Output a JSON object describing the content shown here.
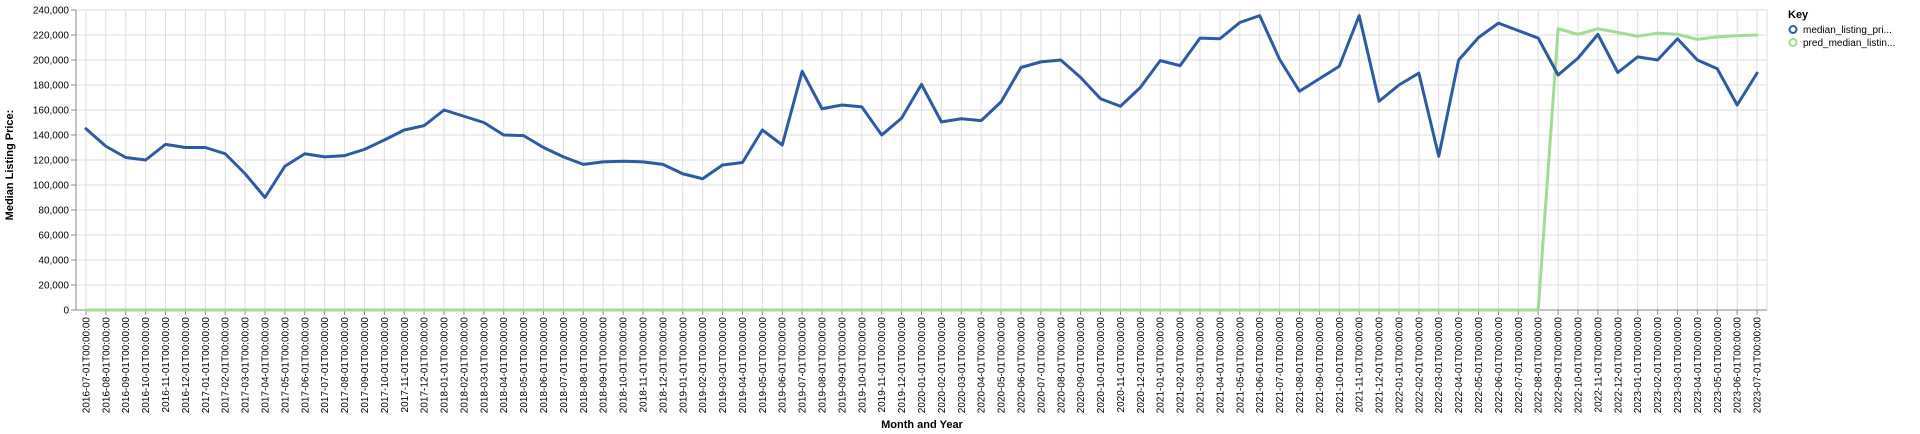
{
  "chart_data": {
    "type": "line",
    "xlabel": "Month and Year",
    "ylabel": "Median Listing Price:",
    "ylim": [
      0,
      240000
    ],
    "yticks": [
      "0",
      "20,000",
      "40,000",
      "60,000",
      "80,000",
      "100,000",
      "120,000",
      "140,000",
      "160,000",
      "180,000",
      "200,000",
      "220,000",
      "240,000"
    ],
    "grid": true,
    "legend_title": "Key",
    "legend_position": "right",
    "x": [
      "2016-07-01T00:00:00",
      "2016-08-01T00:00:00",
      "2016-09-01T00:00:00",
      "2016-10-01T00:00:00",
      "2016-11-01T00:00:00",
      "2016-12-01T00:00:00",
      "2017-01-01T00:00:00",
      "2017-02-01T00:00:00",
      "2017-03-01T00:00:00",
      "2017-04-01T00:00:00",
      "2017-05-01T00:00:00",
      "2017-06-01T00:00:00",
      "2017-07-01T00:00:00",
      "2017-08-01T00:00:00",
      "2017-09-01T00:00:00",
      "2017-10-01T00:00:00",
      "2017-11-01T00:00:00",
      "2017-12-01T00:00:00",
      "2018-01-01T00:00:00",
      "2018-02-01T00:00:00",
      "2018-03-01T00:00:00",
      "2018-04-01T00:00:00",
      "2018-05-01T00:00:00",
      "2018-06-01T00:00:00",
      "2018-07-01T00:00:00",
      "2018-08-01T00:00:00",
      "2018-09-01T00:00:00",
      "2018-10-01T00:00:00",
      "2018-11-01T00:00:00",
      "2018-12-01T00:00:00",
      "2019-01-01T00:00:00",
      "2019-02-01T00:00:00",
      "2019-03-01T00:00:00",
      "2019-04-01T00:00:00",
      "2019-05-01T00:00:00",
      "2019-06-01T00:00:00",
      "2019-07-01T00:00:00",
      "2019-08-01T00:00:00",
      "2019-09-01T00:00:00",
      "2019-10-01T00:00:00",
      "2019-11-01T00:00:00",
      "2019-12-01T00:00:00",
      "2020-01-01T00:00:00",
      "2020-02-01T00:00:00",
      "2020-03-01T00:00:00",
      "2020-04-01T00:00:00",
      "2020-05-01T00:00:00",
      "2020-06-01T00:00:00",
      "2020-07-01T00:00:00",
      "2020-08-01T00:00:00",
      "2020-09-01T00:00:00",
      "2020-10-01T00:00:00",
      "2020-11-01T00:00:00",
      "2020-12-01T00:00:00",
      "2021-01-01T00:00:00",
      "2021-02-01T00:00:00",
      "2021-03-01T00:00:00",
      "2021-04-01T00:00:00",
      "2021-05-01T00:00:00",
      "2021-06-01T00:00:00",
      "2021-07-01T00:00:00",
      "2021-08-01T00:00:00",
      "2021-09-01T00:00:00",
      "2021-10-01T00:00:00",
      "2021-11-01T00:00:00",
      "2021-12-01T00:00:00",
      "2022-01-01T00:00:00",
      "2022-02-01T00:00:00",
      "2022-03-01T00:00:00",
      "2022-04-01T00:00:00",
      "2022-05-01T00:00:00",
      "2022-06-01T00:00:00",
      "2022-07-01T00:00:00",
      "2022-08-01T00:00:00",
      "2022-09-01T00:00:00",
      "2022-10-01T00:00:00",
      "2022-11-01T00:00:00",
      "2022-12-01T00:00:00",
      "2023-01-01T00:00:00",
      "2023-02-01T00:00:00",
      "2023-03-01T00:00:00",
      "2023-04-01T00:00:00",
      "2023-05-01T00:00:00",
      "2023-06-01T00:00:00",
      "2023-07-01T00:00:00"
    ],
    "series": [
      {
        "name": "median_listing_pri...",
        "color": "#2d5ba3",
        "values": [
          145000,
          131000,
          122000,
          120000,
          132500,
          130000,
          130000,
          125000,
          109000,
          90000,
          115000,
          125000,
          122500,
          123500,
          128500,
          136000,
          144000,
          147500,
          160000,
          155000,
          150000,
          140000,
          139500,
          130000,
          122500,
          116500,
          118500,
          119000,
          118500,
          116500,
          109000,
          105000,
          116000,
          118000,
          144000,
          132000,
          191000,
          161000,
          164000,
          162500,
          140000,
          153500,
          180500,
          150500,
          153000,
          151500,
          166500,
          194000,
          198500,
          200000,
          186000,
          169000,
          163000,
          178000,
          199500,
          195500,
          217500,
          217000,
          230000,
          235500,
          200500,
          175000,
          185000,
          195000,
          235500,
          167000,
          180000,
          189500,
          123000,
          200000,
          218000,
          229500,
          223500,
          217500,
          188000,
          201500,
          220500,
          190000,
          202500,
          200000,
          217000,
          200000,
          193000,
          164000,
          189500
        ]
      },
      {
        "name": "pred_median_listin...",
        "color": "#a1dc95",
        "values": [
          0,
          0,
          0,
          0,
          0,
          0,
          0,
          0,
          0,
          0,
          0,
          0,
          0,
          0,
          0,
          0,
          0,
          0,
          0,
          0,
          0,
          0,
          0,
          0,
          0,
          0,
          0,
          0,
          0,
          0,
          0,
          0,
          0,
          0,
          0,
          0,
          0,
          0,
          0,
          0,
          0,
          0,
          0,
          0,
          0,
          0,
          0,
          0,
          0,
          0,
          0,
          0,
          0,
          0,
          0,
          0,
          0,
          0,
          0,
          0,
          0,
          0,
          0,
          0,
          0,
          0,
          0,
          0,
          0,
          0,
          0,
          0,
          0,
          0,
          225000,
          220500,
          225000,
          222000,
          219000,
          221500,
          220500,
          216500,
          218500,
          219500,
          220000
        ]
      }
    ]
  }
}
